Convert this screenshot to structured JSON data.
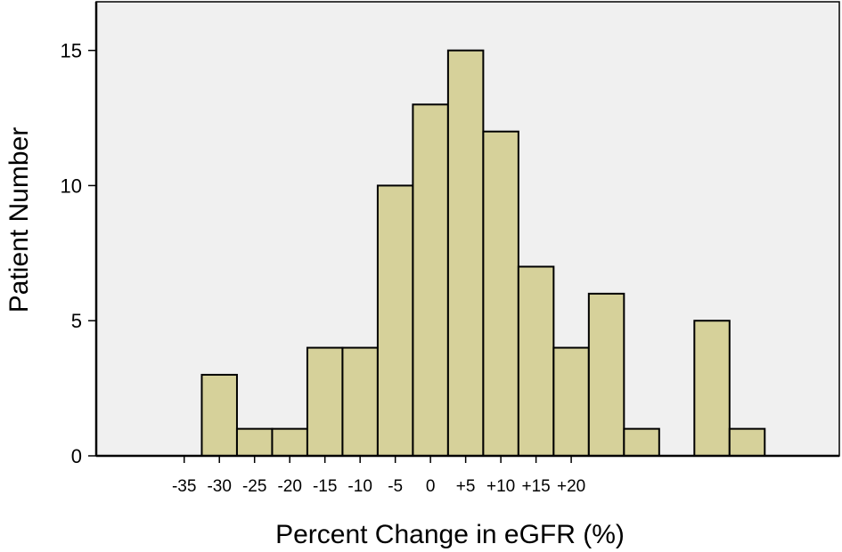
{
  "chart_data": {
    "type": "bar",
    "title": "",
    "xlabel": "Percent Change in eGFR (%)",
    "ylabel": "Patient Number",
    "x_ticks": [
      {
        "value": -35,
        "label": "-35"
      },
      {
        "value": -30,
        "label": "-30"
      },
      {
        "value": -25,
        "label": "-25"
      },
      {
        "value": -20,
        "label": "-20"
      },
      {
        "value": -15,
        "label": "-15"
      },
      {
        "value": -10,
        "label": "-10"
      },
      {
        "value": -5,
        "label": "-5"
      },
      {
        "value": 0,
        "label": "0"
      },
      {
        "value": 5,
        "label": "+5"
      },
      {
        "value": 10,
        "label": "+10"
      },
      {
        "value": 15,
        "label": "+15"
      },
      {
        "value": 20,
        "label": "+20"
      }
    ],
    "y_ticks": [
      {
        "value": 0,
        "label": "0"
      },
      {
        "value": 5,
        "label": "5"
      },
      {
        "value": 10,
        "label": "10"
      },
      {
        "value": 15,
        "label": "15"
      }
    ],
    "bin_width": 5,
    "bins": [
      {
        "start": -32.5,
        "end": -27.5,
        "count": 3
      },
      {
        "start": -27.5,
        "end": -22.5,
        "count": 1
      },
      {
        "start": -22.5,
        "end": -17.5,
        "count": 1
      },
      {
        "start": -17.5,
        "end": -12.5,
        "count": 4
      },
      {
        "start": -12.5,
        "end": -7.5,
        "count": 4
      },
      {
        "start": -7.5,
        "end": -2.5,
        "count": 10
      },
      {
        "start": -2.5,
        "end": 2.5,
        "count": 13
      },
      {
        "start": 2.5,
        "end": 7.5,
        "count": 15
      },
      {
        "start": 7.5,
        "end": 12.5,
        "count": 12
      },
      {
        "start": 12.5,
        "end": 17.5,
        "count": 7
      },
      {
        "start": 17.5,
        "end": 22.5,
        "count": 4
      },
      {
        "start": 22.5,
        "end": 27.5,
        "count": 6
      },
      {
        "start": 27.5,
        "end": 32.5,
        "count": 1
      },
      {
        "start": 32.5,
        "end": 37.5,
        "count": 0
      },
      {
        "start": 37.5,
        "end": 42.5,
        "count": 5
      },
      {
        "start": 42.5,
        "end": 47.5,
        "count": 1
      }
    ],
    "ylim": [
      0,
      16.8
    ],
    "grid": false,
    "legend": "none",
    "colors": {
      "bar_fill": "#d6d19a",
      "bar_stroke": "#000000",
      "plot_background": "#f0f0f0",
      "axis": "#000000"
    }
  }
}
